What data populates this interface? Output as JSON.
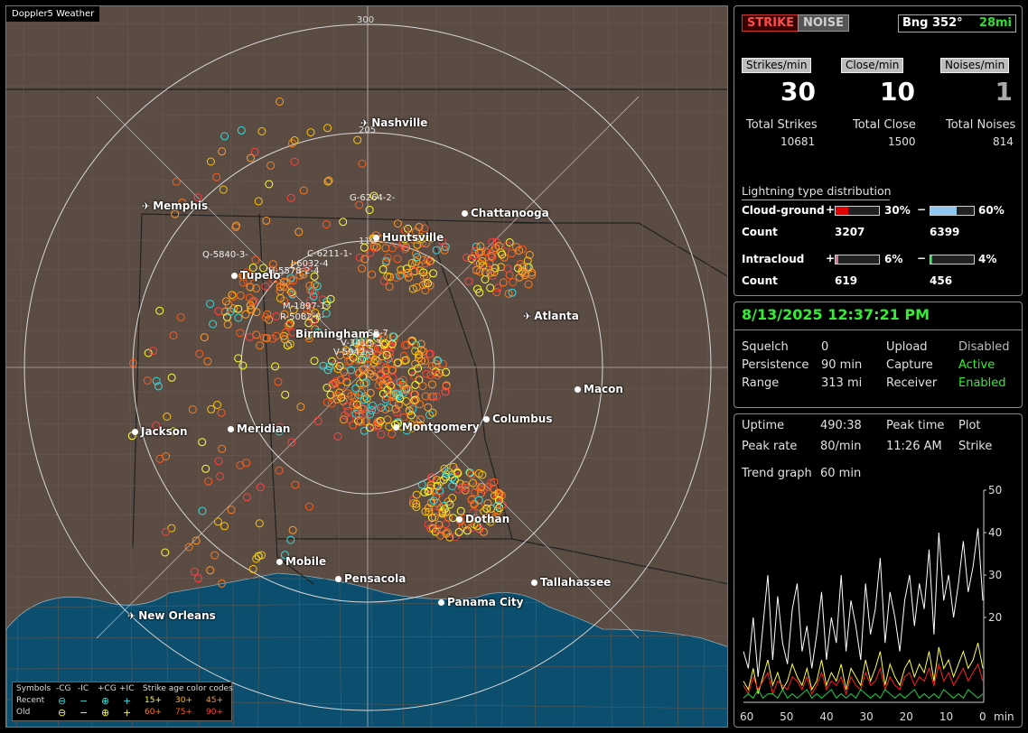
{
  "map": {
    "title": "Doppler5 Weather",
    "ring_labels": [
      "300",
      "205",
      "110"
    ],
    "cities": [
      {
        "name": "Nashville",
        "icon": "plane-icon"
      },
      {
        "name": "Memphis",
        "icon": "plane-icon"
      },
      {
        "name": "Chattanooga",
        "icon": "dot-icon"
      },
      {
        "name": "Huntsville",
        "icon": "dot-icon"
      },
      {
        "name": "Tupelo",
        "icon": "dot-icon"
      },
      {
        "name": "Atlanta",
        "icon": "plane-icon"
      },
      {
        "name": "Birmingham",
        "icon": "dot-icon"
      },
      {
        "name": "Macon",
        "icon": "dot-icon"
      },
      {
        "name": "Jackson",
        "icon": "dot-icon"
      },
      {
        "name": "Meridian",
        "icon": "dot-icon"
      },
      {
        "name": "Montgomery",
        "icon": "dot-icon"
      },
      {
        "name": "Columbus",
        "icon": "dot-icon"
      },
      {
        "name": "Dothan",
        "icon": "dot-icon"
      },
      {
        "name": "Mobile",
        "icon": "dot-icon"
      },
      {
        "name": "Pensacola",
        "icon": "dot-icon"
      },
      {
        "name": "Tallahassee",
        "icon": "dot-icon"
      },
      {
        "name": "Panama City",
        "icon": "dot-icon"
      },
      {
        "name": "New Orleans",
        "icon": "plane-icon"
      }
    ],
    "storm_tags": [
      "G-6264-2-",
      "C-6211-1-",
      "Q-5840-3-",
      "J-6032-4",
      "H-5578-2-4",
      "M-1897-1-",
      "R-5082-8-",
      "S9-7",
      "V-3413-3",
      "V-5942-3"
    ],
    "legend": {
      "row1": [
        "Symbols",
        "-CG",
        "-IC",
        "+CG",
        "+IC",
        "Strike age color codes"
      ],
      "row2": [
        "Recent",
        "⊖",
        "−",
        "⊕",
        "+",
        "15+",
        "30+",
        "45+"
      ],
      "row3": [
        "Old",
        "⊖",
        "−",
        "⊕",
        "+",
        "60+",
        "75+",
        "90+"
      ],
      "age_colors": [
        "#ffff33",
        "#ffc400",
        "#ff9a2a",
        "#ff7a1a",
        "#ff5a1a",
        "#ff4040"
      ]
    }
  },
  "top": {
    "strike_btn": "STRIKE",
    "noise_btn": "NOISE",
    "bearing": "Bng 352°",
    "distance": "28mi",
    "headers": [
      "Strikes/min",
      "Close/min",
      "Noises/min"
    ],
    "values": [
      "30",
      "10",
      "1"
    ],
    "total_labels": [
      "Total Strikes",
      "Total Close",
      "Total Noises"
    ],
    "totals": [
      "10681",
      "1500",
      "814"
    ],
    "dist_title": "Lightning type distribution",
    "cg_label": "Cloud-ground",
    "ic_label": "Intracloud",
    "count_label": "Count",
    "plus": "+",
    "minus": "−",
    "cg_pos_pct": "30%",
    "cg_neg_pct": "60%",
    "ic_pos_pct": "6%",
    "ic_neg_pct": "4%",
    "cg_pos_fill": 0.3,
    "cg_neg_fill": 0.6,
    "ic_pos_fill": 0.06,
    "ic_neg_fill": 0.04,
    "cg_pos_count": "3207",
    "cg_neg_count": "6399",
    "ic_pos_count": "619",
    "ic_neg_count": "456",
    "bar_colors": {
      "cg_pos": "#e00000",
      "cg_neg": "#8ec8f0",
      "ic_pos": "#e07090",
      "ic_neg": "#22cc44"
    }
  },
  "status": {
    "datetime": "8/13/2025 12:37:21 PM",
    "squelch_label": "Squelch",
    "squelch_value": "0",
    "persistence_label": "Persistence",
    "persistence_value": "90 min",
    "range_label": "Range",
    "range_value": "313 mi",
    "upload_label": "Upload",
    "upload_value": "Disabled",
    "capture_label": "Capture",
    "capture_value": "Active",
    "receiver_label": "Receiver",
    "receiver_value": "Enabled"
  },
  "trend": {
    "uptime_label": "Uptime",
    "uptime_value": "490:38",
    "peak_time_label": "Peak time",
    "peak_time_value": "11:26 AM",
    "plot_label": "Plot",
    "plot_value": "Strike",
    "peak_rate_label": "Peak rate",
    "peak_rate_value": "80/min",
    "trend_label": "Trend graph",
    "trend_value": "60 min",
    "y_ticks": [
      "50",
      "40",
      "30",
      "20"
    ],
    "x_ticks": [
      "60",
      "50",
      "40",
      "30",
      "20",
      "10",
      "0"
    ],
    "x_unit": "min"
  },
  "chart_data": {
    "type": "line",
    "xlabel": "min",
    "ylim": [
      0,
      50
    ],
    "xlim": [
      60,
      0
    ],
    "series": [
      {
        "color": "#ffffff",
        "values": [
          12,
          8,
          20,
          6,
          18,
          30,
          10,
          25,
          14,
          9,
          22,
          28,
          12,
          18,
          8,
          16,
          26,
          10,
          20,
          14,
          30,
          12,
          24,
          18,
          10,
          28,
          16,
          22,
          34,
          14,
          26,
          20,
          12,
          24,
          30,
          18,
          28,
          22,
          36,
          16,
          40,
          24,
          30,
          20,
          28,
          38,
          26,
          32,
          41,
          24
        ]
      },
      {
        "color": "#ffff44",
        "values": [
          5,
          3,
          8,
          2,
          6,
          10,
          4,
          7,
          3,
          5,
          9,
          6,
          4,
          8,
          3,
          5,
          10,
          4,
          7,
          5,
          9,
          3,
          8,
          6,
          4,
          10,
          5,
          8,
          12,
          4,
          9,
          6,
          4,
          8,
          10,
          6,
          9,
          7,
          12,
          5,
          13,
          8,
          10,
          6,
          9,
          12,
          8,
          10,
          14,
          8
        ]
      },
      {
        "color": "#ff2020",
        "values": [
          4,
          2,
          6,
          3,
          5,
          7,
          2,
          5,
          4,
          3,
          6,
          5,
          3,
          6,
          2,
          4,
          7,
          3,
          5,
          4,
          6,
          2,
          6,
          4,
          3,
          7,
          4,
          5,
          8,
          3,
          6,
          4,
          3,
          6,
          7,
          4,
          6,
          5,
          8,
          4,
          9,
          5,
          7,
          4,
          6,
          8,
          5,
          7,
          9,
          5
        ]
      },
      {
        "color": "#22cc44",
        "values": [
          1,
          2,
          1,
          3,
          1,
          2,
          2,
          1,
          3,
          1,
          2,
          1,
          2,
          3,
          1,
          2,
          1,
          2,
          3,
          1,
          2,
          1,
          2,
          1,
          3,
          2,
          1,
          2,
          1,
          3,
          2,
          1,
          2,
          1,
          2,
          3,
          1,
          2,
          1,
          2,
          1,
          3,
          2,
          1,
          2,
          1,
          3,
          2,
          1,
          2
        ]
      }
    ]
  }
}
